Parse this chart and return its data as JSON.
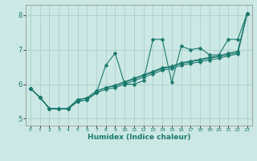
{
  "xlabel": "Humidex (Indice chaleur)",
  "ylabel": "",
  "xlim": [
    -0.5,
    23.5
  ],
  "ylim": [
    4.8,
    8.3
  ],
  "yticks": [
    5,
    6,
    7,
    8
  ],
  "xticks": [
    0,
    1,
    2,
    3,
    4,
    5,
    6,
    7,
    8,
    9,
    10,
    11,
    12,
    13,
    14,
    15,
    16,
    17,
    18,
    19,
    20,
    21,
    22,
    23
  ],
  "bg_color": "#cce8e4",
  "grid_color": "#aad0cc",
  "line_color": "#1a7a6e",
  "markersize": 2.5,
  "lines": [
    {
      "x": [
        0,
        1,
        2,
        3,
        4,
        5,
        6,
        7,
        8,
        9,
        10,
        11,
        12,
        13,
        14,
        15,
        16,
        17,
        18,
        19,
        20,
        21,
        22,
        23
      ],
      "y": [
        5.88,
        5.62,
        5.3,
        5.28,
        5.28,
        5.5,
        5.55,
        5.75,
        6.55,
        6.9,
        6.0,
        6.0,
        6.1,
        7.3,
        7.3,
        6.05,
        7.1,
        7.0,
        7.05,
        6.85,
        6.85,
        7.3,
        7.3,
        8.05
      ]
    },
    {
      "x": [
        0,
        1,
        2,
        3,
        4,
        5,
        6,
        7,
        8,
        9,
        10,
        11,
        12,
        13,
        14,
        15,
        16,
        17,
        18,
        19,
        20,
        21,
        22,
        23
      ],
      "y": [
        5.88,
        5.62,
        5.3,
        5.28,
        5.28,
        5.5,
        5.55,
        5.75,
        5.85,
        5.9,
        6.0,
        6.1,
        6.2,
        6.3,
        6.4,
        6.45,
        6.55,
        6.6,
        6.65,
        6.7,
        6.75,
        6.82,
        6.88,
        8.05
      ]
    },
    {
      "x": [
        0,
        1,
        2,
        3,
        4,
        5,
        6,
        7,
        8,
        9,
        10,
        11,
        12,
        13,
        14,
        15,
        16,
        17,
        18,
        19,
        20,
        21,
        22,
        23
      ],
      "y": [
        5.88,
        5.62,
        5.3,
        5.28,
        5.3,
        5.55,
        5.6,
        5.8,
        5.9,
        5.95,
        6.05,
        6.15,
        6.25,
        6.35,
        6.45,
        6.5,
        6.6,
        6.65,
        6.7,
        6.75,
        6.8,
        6.86,
        6.92,
        8.05
      ]
    },
    {
      "x": [
        0,
        1,
        2,
        3,
        4,
        5,
        6,
        7,
        8,
        9,
        10,
        11,
        12,
        13,
        14,
        15,
        16,
        17,
        18,
        19,
        20,
        21,
        22,
        23
      ],
      "y": [
        5.88,
        5.62,
        5.3,
        5.28,
        5.3,
        5.55,
        5.6,
        5.8,
        5.9,
        5.97,
        6.07,
        6.17,
        6.27,
        6.37,
        6.48,
        6.52,
        6.62,
        6.67,
        6.72,
        6.78,
        6.82,
        6.9,
        6.95,
        8.05
      ]
    }
  ]
}
